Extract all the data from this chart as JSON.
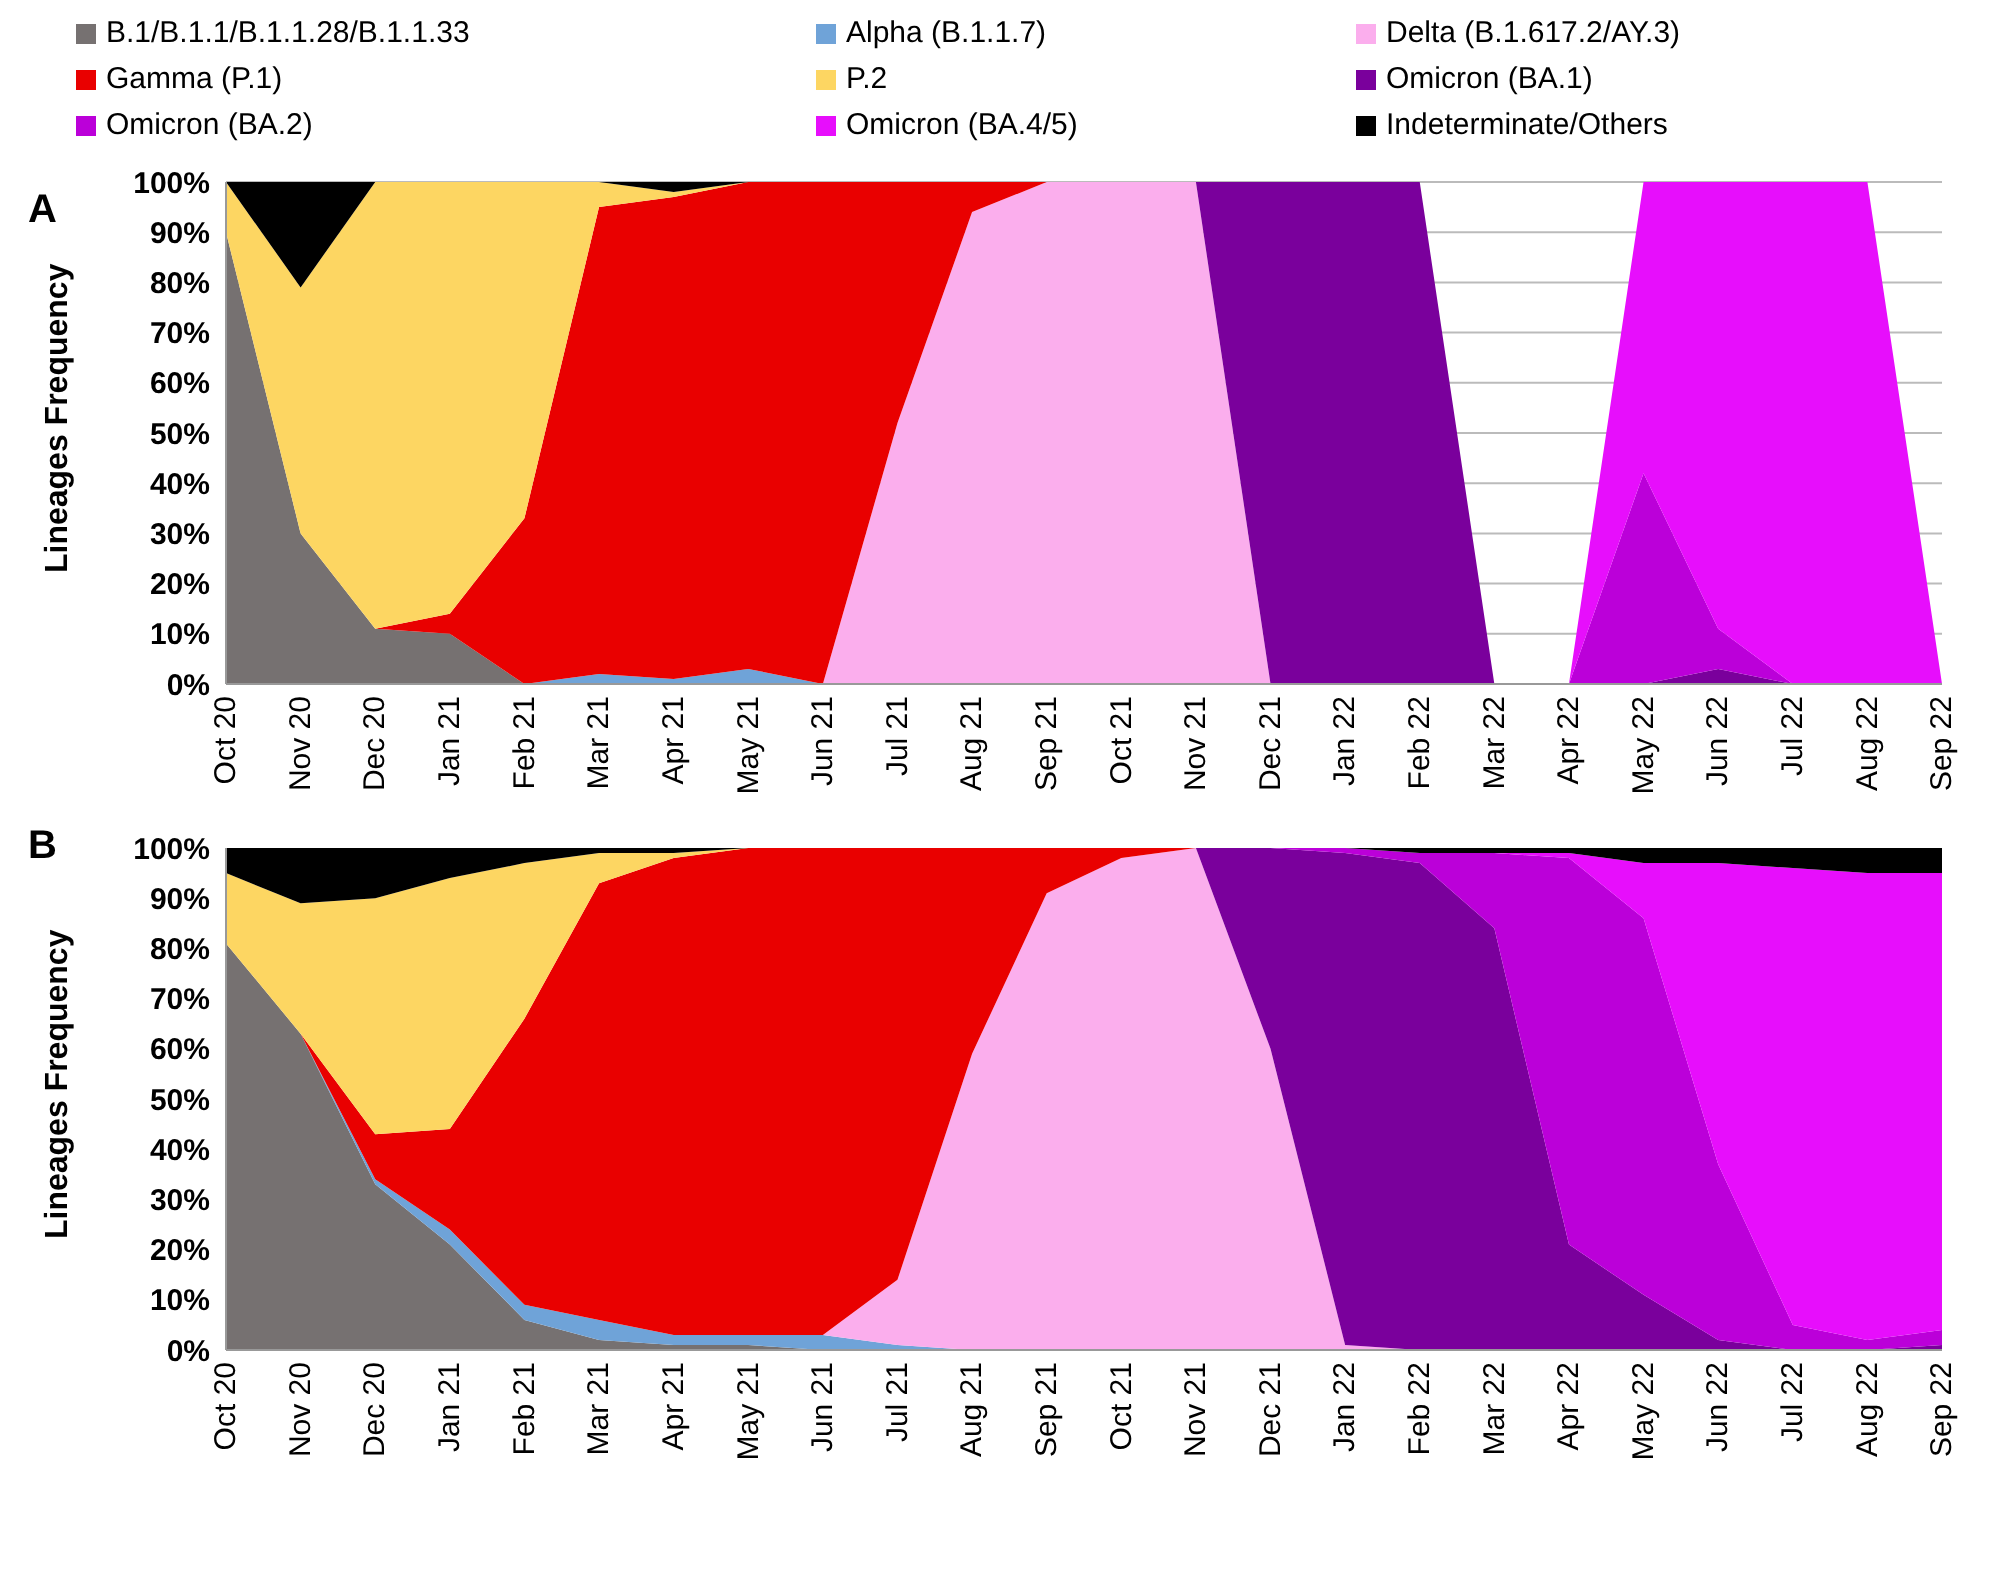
{
  "chart_data": [
    {
      "type": "area",
      "title": "A",
      "ylabel": "Lineages Frequency",
      "stacked": true,
      "grid": "y",
      "legend": "top",
      "categories": [
        "Oct 20",
        "Nov 20",
        "Dec 20",
        "Jan 21",
        "Feb 21",
        "Mar 21",
        "Apr 21",
        "May 21",
        "Jun 21",
        "Jul 21",
        "Aug 21",
        "Sep 21",
        "Oct 21",
        "Nov 21",
        "Dec 21",
        "Jan 22",
        "Feb 22",
        "Mar 22",
        "Apr 22",
        "May 22",
        "Jun 22",
        "Jul 22",
        "Aug 22",
        "Sep 22"
      ],
      "ylim": [
        0,
        100
      ],
      "yticks": [
        {
          "value": 0,
          "label": "0%"
        },
        {
          "value": 10,
          "label": "10%"
        },
        {
          "value": 20,
          "label": "20%"
        },
        {
          "value": 30,
          "label": "30%"
        },
        {
          "value": 40,
          "label": "40%"
        },
        {
          "value": 50,
          "label": "50%"
        },
        {
          "value": 60,
          "label": "60%"
        },
        {
          "value": 70,
          "label": "70%"
        },
        {
          "value": 80,
          "label": "80%"
        },
        {
          "value": 90,
          "label": "90%"
        },
        {
          "value": 100,
          "label": "100%"
        }
      ],
      "series": [
        {
          "name": "B.1/B.1.1/B.1.1.28/B.1.1.33",
          "color": "#767171",
          "values": [
            90,
            30,
            11,
            10,
            0,
            null,
            null,
            null,
            null,
            null,
            null,
            null,
            null,
            null,
            null,
            null,
            null,
            null,
            null,
            null,
            null,
            null,
            null,
            null
          ]
        },
        {
          "name": "Alpha (B.1.1.7)",
          "color": "#6fa3d8",
          "values": [
            null,
            null,
            null,
            null,
            0,
            2,
            1,
            3,
            0,
            null,
            null,
            null,
            null,
            null,
            null,
            null,
            null,
            null,
            null,
            null,
            null,
            null,
            null,
            null
          ]
        },
        {
          "name": "Delta (B.1.617.2/AY.3)",
          "color": "#fbaeed",
          "values": [
            null,
            null,
            null,
            null,
            null,
            null,
            null,
            null,
            0,
            52,
            94,
            100,
            100,
            100,
            0,
            null,
            null,
            null,
            null,
            null,
            null,
            null,
            null,
            null
          ]
        },
        {
          "name": "Gamma (P.1)",
          "color": "#e90000",
          "values": [
            null,
            null,
            0,
            4,
            33,
            93,
            96,
            97,
            100,
            48,
            6,
            0,
            null,
            null,
            null,
            null,
            null,
            null,
            null,
            null,
            null,
            null,
            null,
            null
          ]
        },
        {
          "name": "P.2",
          "color": "#fdd662",
          "values": [
            10,
            49,
            89,
            86,
            67,
            5,
            1,
            0,
            null,
            null,
            null,
            null,
            null,
            null,
            null,
            null,
            null,
            null,
            null,
            null,
            null,
            null,
            null,
            null
          ]
        },
        {
          "name": "Omicron (BA.1)",
          "color": "#7a009c",
          "values": [
            null,
            null,
            null,
            null,
            null,
            null,
            null,
            null,
            null,
            null,
            null,
            null,
            null,
            0,
            100,
            100,
            100,
            0,
            null,
            0,
            3,
            0,
            null,
            null
          ]
        },
        {
          "name": "Omicron (BA.2)",
          "color": "#bb00d9",
          "values": [
            null,
            null,
            null,
            null,
            null,
            null,
            null,
            null,
            null,
            null,
            null,
            null,
            null,
            null,
            null,
            null,
            null,
            null,
            0,
            42,
            8,
            0,
            null,
            null
          ]
        },
        {
          "name": "Omicron (BA.4/5)",
          "color": "#e70efc",
          "values": [
            null,
            null,
            null,
            null,
            null,
            null,
            null,
            null,
            null,
            null,
            null,
            null,
            null,
            null,
            null,
            null,
            null,
            null,
            0,
            58,
            89,
            100,
            100,
            0
          ]
        },
        {
          "name": "Indeterminate/Others",
          "color": "#000000",
          "values": [
            0,
            21,
            0,
            null,
            null,
            0,
            2,
            0,
            null,
            null,
            null,
            null,
            null,
            null,
            null,
            null,
            null,
            null,
            null,
            null,
            null,
            null,
            null,
            null
          ]
        }
      ]
    },
    {
      "type": "area",
      "title": "B",
      "ylabel": "Lineages Frequency",
      "stacked": true,
      "categories": [
        "Oct 20",
        "Nov 20",
        "Dec 20",
        "Jan 21",
        "Feb 21",
        "Mar 21",
        "Apr 21",
        "May 21",
        "Jun 21",
        "Jul 21",
        "Aug 21",
        "Sep 21",
        "Oct 21",
        "Nov 21",
        "Dec 21",
        "Jan 22",
        "Feb 22",
        "Mar 22",
        "Apr 22",
        "May 22",
        "Jun 22",
        "Jul 22",
        "Aug 22",
        "Sep 22"
      ],
      "ylim": [
        0,
        100
      ],
      "yticks": [
        {
          "value": 0,
          "label": "0%"
        },
        {
          "value": 10,
          "label": "10%"
        },
        {
          "value": 20,
          "label": "20%"
        },
        {
          "value": 30,
          "label": "30%"
        },
        {
          "value": 40,
          "label": "40%"
        },
        {
          "value": 50,
          "label": "50%"
        },
        {
          "value": 60,
          "label": "60%"
        },
        {
          "value": 70,
          "label": "70%"
        },
        {
          "value": 80,
          "label": "80%"
        },
        {
          "value": 90,
          "label": "90%"
        },
        {
          "value": 100,
          "label": "100%"
        }
      ],
      "series": [
        {
          "color": "#767171",
          "values": [
            81,
            63,
            33,
            21,
            6,
            2,
            1,
            1,
            0,
            null,
            null,
            null,
            null,
            null,
            null,
            null,
            null,
            null,
            null,
            null,
            null,
            null,
            null,
            null
          ]
        },
        {
          "color": "#6fa3d8",
          "values": [
            null,
            0,
            1,
            3,
            3,
            4,
            2,
            2,
            3,
            1,
            0,
            null,
            null,
            null,
            null,
            null,
            null,
            null,
            null,
            null,
            null,
            null,
            null,
            null
          ]
        },
        {
          "color": "#fbaeed",
          "values": [
            null,
            null,
            null,
            null,
            null,
            null,
            null,
            null,
            0,
            13,
            59,
            91,
            98,
            100,
            60,
            1,
            0,
            null,
            null,
            null,
            null,
            null,
            null,
            null
          ]
        },
        {
          "color": "#e90000",
          "values": [
            null,
            0,
            9,
            20,
            57,
            87,
            95,
            97,
            97,
            86,
            41,
            9,
            2,
            0,
            null,
            null,
            null,
            null,
            null,
            null,
            null,
            null,
            null,
            null
          ]
        },
        {
          "color": "#fdd662",
          "values": [
            14,
            26,
            47,
            50,
            31,
            6,
            1,
            0,
            null,
            null,
            null,
            null,
            null,
            null,
            null,
            null,
            null,
            null,
            null,
            null,
            null,
            null,
            null,
            null
          ]
        },
        {
          "color": "#7a009c",
          "values": [
            null,
            null,
            null,
            null,
            null,
            null,
            null,
            null,
            null,
            null,
            null,
            null,
            null,
            0,
            40,
            98,
            97,
            84,
            21,
            11,
            2,
            0,
            0,
            1
          ]
        },
        {
          "color": "#bb00d9",
          "values": [
            null,
            null,
            null,
            null,
            null,
            null,
            null,
            null,
            null,
            null,
            null,
            null,
            null,
            null,
            0,
            1,
            2,
            15,
            77,
            75,
            35,
            5,
            2,
            3
          ]
        },
        {
          "color": "#e70efc",
          "values": [
            null,
            null,
            null,
            null,
            null,
            null,
            null,
            null,
            null,
            null,
            null,
            null,
            null,
            null,
            null,
            null,
            null,
            0,
            1,
            11,
            60,
            91,
            93,
            91
          ]
        },
        {
          "color": "#000000",
          "values": [
            5,
            11,
            10,
            6,
            3,
            1,
            1,
            0,
            null,
            null,
            null,
            null,
            null,
            null,
            null,
            0,
            1,
            1,
            1,
            3,
            3,
            4,
            5,
            5
          ]
        }
      ]
    }
  ]
}
